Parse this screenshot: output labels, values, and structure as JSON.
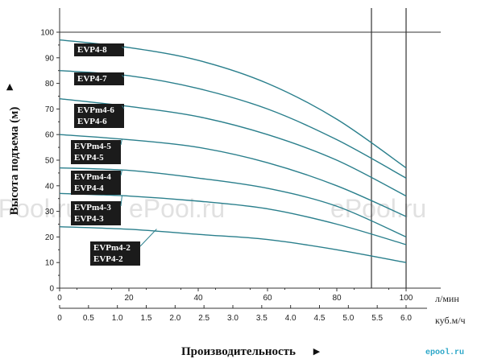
{
  "chart_data": {
    "type": "line",
    "ylabel": "Высота подъема (м)",
    "xlabel": "Производительность",
    "x_unit_primary": "л/мин",
    "x_unit_secondary": "куб.м/ч",
    "xlim": [
      0,
      100
    ],
    "ylim": [
      0,
      100
    ],
    "x_ticks": [
      "0",
      "20",
      "40",
      "60",
      "80",
      "100"
    ],
    "y_ticks": [
      "0",
      "10",
      "20",
      "30",
      "40",
      "50",
      "60",
      "70",
      "80",
      "90",
      "100"
    ],
    "x_secondary_ticks": [
      "0",
      "0.5",
      "1.0",
      "1.5",
      "2.0",
      "2.5",
      "3.0",
      "3.5",
      "4.0",
      "4.5",
      "5.0",
      "5.5",
      "6.0"
    ],
    "vertical_lines": [
      90,
      100
    ],
    "grid": false,
    "line_color": "#2a7f8c",
    "series": [
      {
        "name": "EVP4-8",
        "labels": [
          "EVP4-8"
        ],
        "x": [
          0,
          20,
          40,
          60,
          80,
          100
        ],
        "y": [
          97,
          94,
          89,
          80,
          66,
          47
        ]
      },
      {
        "name": "EVP4-7",
        "labels": [
          "EVP4-7"
        ],
        "x": [
          0,
          20,
          40,
          60,
          80,
          100
        ],
        "y": [
          85,
          83,
          78,
          70,
          58,
          43
        ]
      },
      {
        "name": "EVPm4-6 / EVP4-6",
        "labels": [
          "EVPm4-6",
          "EVP4-6"
        ],
        "x": [
          0,
          20,
          40,
          60,
          80,
          100
        ],
        "y": [
          74,
          71,
          67,
          60,
          50,
          36
        ]
      },
      {
        "name": "EVPm4-5 / EVP4-5",
        "labels": [
          "EVPm4-5",
          "EVP4-5"
        ],
        "x": [
          0,
          20,
          40,
          60,
          80,
          100
        ],
        "y": [
          60,
          58,
          55,
          49,
          40,
          28
        ]
      },
      {
        "name": "EVPm4-4 / EVP4-4",
        "labels": [
          "EVPm4-4",
          "EVP4-4"
        ],
        "x": [
          0,
          20,
          40,
          60,
          80,
          100
        ],
        "y": [
          47,
          46,
          43,
          39,
          32,
          20
        ]
      },
      {
        "name": "EVPm4-3 / EVP4-3",
        "labels": [
          "EVPm4-3",
          "EVP4-3"
        ],
        "x": [
          0,
          20,
          40,
          60,
          80,
          100
        ],
        "y": [
          37,
          36,
          34,
          31,
          25,
          17
        ]
      },
      {
        "name": "EVPm4-2 / EVP4-2",
        "labels": [
          "EVPm4-2",
          "EVP4-2"
        ],
        "x": [
          0,
          20,
          40,
          60,
          80,
          100
        ],
        "y": [
          24,
          23,
          21,
          19,
          15,
          10
        ]
      }
    ]
  },
  "watermark": "ePool.ru",
  "logo": "epool.ru"
}
